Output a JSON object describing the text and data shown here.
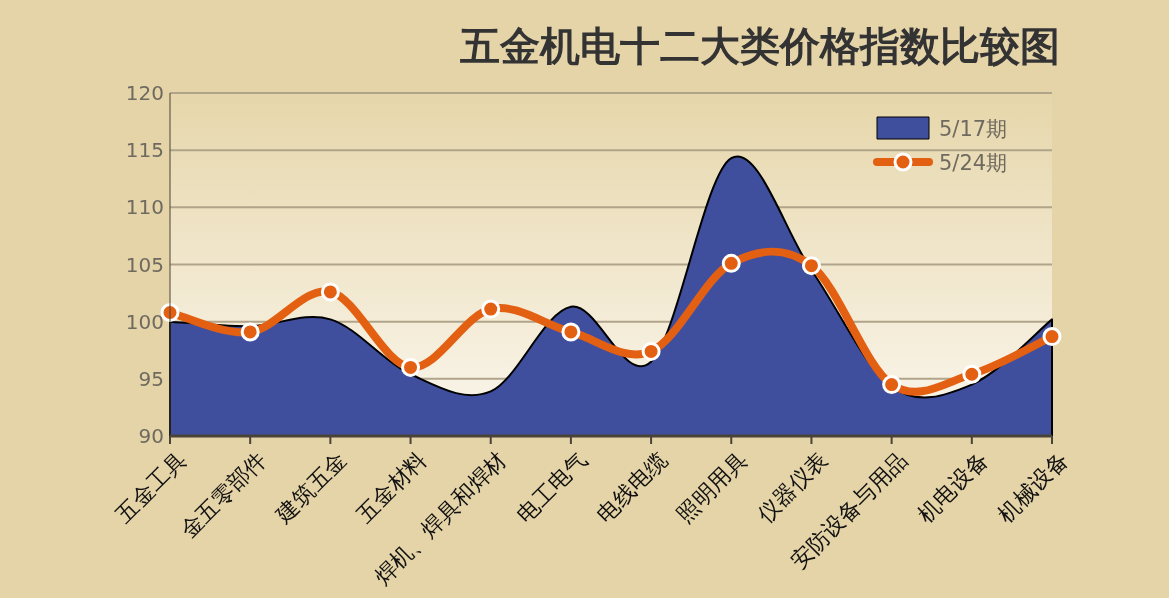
{
  "chart_data": {
    "type": "area",
    "title": "五金机电十二大类价格指数比较图",
    "categories": [
      "五金工具",
      "金五零部件",
      "建筑五金",
      "五金材料",
      "焊机、焊具和焊材",
      "电工电气",
      "电线电缆",
      "照明用具",
      "仪器仪表",
      "安防设备与用品",
      "机电设备",
      "机械设备"
    ],
    "series": [
      {
        "name": "5/17期",
        "type": "area",
        "color": "#3f4f9e",
        "values": [
          100.0,
          99.6,
          100.2,
          95.4,
          93.9,
          101.3,
          96.5,
          114.3,
          104.5,
          94.3,
          94.5,
          100.2
        ]
      },
      {
        "name": "5/24期",
        "type": "line",
        "color": "#e35f12",
        "marker": "circle",
        "values": [
          100.8,
          99.1,
          102.6,
          96.0,
          101.1,
          99.1,
          97.4,
          105.1,
          104.9,
          94.5,
          95.4,
          98.7
        ]
      }
    ],
    "ylim": [
      90,
      120
    ],
    "yticks": [
      90,
      95,
      100,
      105,
      110,
      115,
      120
    ],
    "grid": "y",
    "legend": "top right"
  }
}
